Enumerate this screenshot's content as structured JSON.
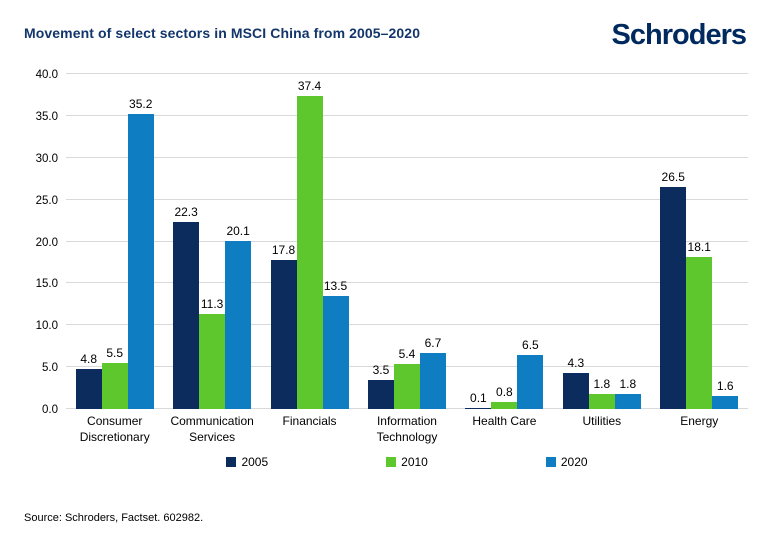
{
  "header": {
    "title": "Movement of select sectors in MSCI China from 2005–2020",
    "logo_text": "Schroders"
  },
  "colors": {
    "navy": "#0c2c5e",
    "green": "#5fc72e",
    "blue": "#0e7dc2",
    "title_navy": "#12366b",
    "logo_navy": "#002a5e",
    "gridline": "#d9d9d9",
    "label_text": "#000000",
    "background": "#ffffff"
  },
  "chart_data": {
    "type": "bar",
    "title": "Movement of select sectors in MSCI China from 2005–2020",
    "categories": [
      "Consumer Discretionary",
      "Communication Services",
      "Financials",
      "Information Technology",
      "Health Care",
      "Utilities",
      "Energy"
    ],
    "series": [
      {
        "name": "2005",
        "color": "#0c2c5e",
        "values": [
          4.8,
          22.3,
          17.8,
          3.5,
          0.1,
          4.3,
          26.5
        ]
      },
      {
        "name": "2010",
        "color": "#5fc72e",
        "values": [
          5.5,
          11.3,
          37.4,
          5.4,
          0.8,
          1.8,
          18.1
        ]
      },
      {
        "name": "2020",
        "color": "#0e7dc2",
        "values": [
          35.2,
          20.1,
          13.5,
          6.7,
          6.5,
          1.8,
          1.6
        ]
      }
    ],
    "xlabel": "",
    "ylabel": "",
    "ylim": [
      0,
      40
    ],
    "ytick_step": 5,
    "ytick_labels": [
      "0.0",
      "5.0",
      "10.0",
      "15.0",
      "20.0",
      "25.0",
      "30.0",
      "35.0",
      "40.0"
    ],
    "grid": true,
    "value_labels": true,
    "legend_position": "bottom"
  },
  "footer": {
    "source": "Source: Schroders, Factset. 602982."
  }
}
